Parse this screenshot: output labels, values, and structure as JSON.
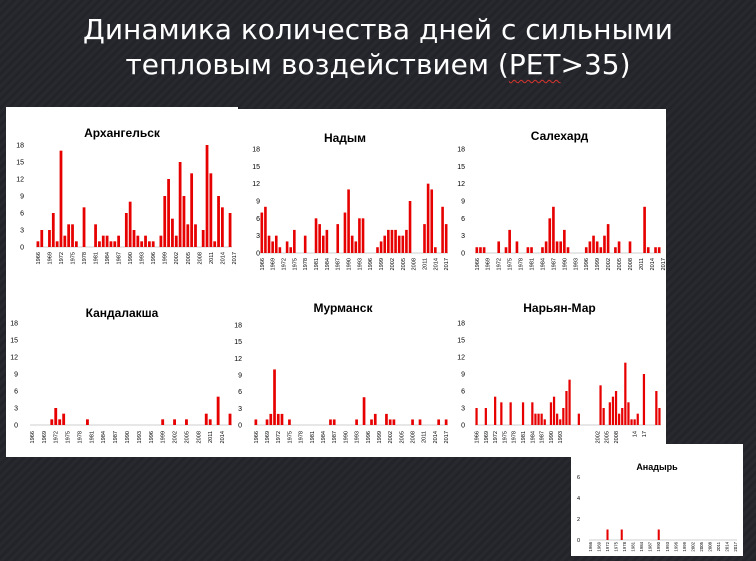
{
  "slide": {
    "title_line1": "Динамика количества дней с сильными",
    "title_line2_pre": "тепловым воздействием (",
    "title_line2_pet": "PET",
    "title_line2_post": ">35)"
  },
  "colors": {
    "bar": "#e60000",
    "background": "#23252b",
    "panel": "#ffffff"
  },
  "chart_data": [
    {
      "type": "bar",
      "title": "Архангельск",
      "ylim": [
        0,
        18
      ],
      "yticks": [
        0,
        3,
        6,
        9,
        12,
        15,
        18
      ],
      "x_start": 1966,
      "xtick_labels": [
        "1966",
        "1969",
        "1972",
        "1975",
        "1978",
        "1981",
        "1984",
        "1987",
        "1990",
        "1993",
        "1996",
        "1999",
        "2002",
        "2005",
        "2008",
        "2011",
        "2014",
        "2017"
      ],
      "values": [
        1,
        3,
        0,
        3,
        6,
        1,
        17,
        2,
        4,
        4,
        1,
        0,
        7,
        0,
        0,
        4,
        1,
        2,
        2,
        1,
        1,
        2,
        0,
        6,
        8,
        3,
        2,
        1,
        2,
        1,
        1,
        0,
        2,
        9,
        12,
        5,
        2,
        15,
        9,
        4,
        13,
        4,
        0,
        3,
        18,
        13,
        1,
        9,
        7,
        0,
        6
      ],
      "grid": false,
      "legend": "none"
    },
    {
      "type": "bar",
      "title": "Надым",
      "ylim": [
        0,
        18
      ],
      "yticks": [
        0,
        3,
        6,
        9,
        12,
        15,
        18
      ],
      "x_start": 1966,
      "xtick_labels": [
        "1966",
        "1969",
        "1972",
        "1975",
        "1978",
        "1981",
        "1984",
        "1987",
        "1990",
        "1993",
        "1996",
        "1999",
        "2002",
        "2005",
        "2008",
        "2011",
        "2014",
        "2017"
      ],
      "values": [
        7,
        8,
        3,
        2,
        3,
        1,
        0,
        2,
        1,
        4,
        0,
        0,
        3,
        0,
        0,
        6,
        5,
        3,
        4,
        0,
        0,
        5,
        0,
        7,
        11,
        3,
        2,
        6,
        6,
        0,
        0,
        0,
        1,
        2,
        3,
        4,
        4,
        4,
        3,
        3,
        4,
        9,
        0,
        0,
        0,
        5,
        12,
        11,
        1,
        0,
        8,
        5
      ],
      "grid": false,
      "legend": "none"
    },
    {
      "type": "bar",
      "title": "Салехард",
      "ylim": [
        0,
        18
      ],
      "yticks": [
        0,
        3,
        6,
        9,
        12,
        15,
        18
      ],
      "x_start": 1966,
      "xtick_labels": [
        "1966",
        "1969",
        "1972",
        "1975",
        "1978",
        "1981",
        "1984",
        "1987",
        "1990",
        "1993",
        "1996",
        "1999",
        "2002",
        "2005",
        "2008",
        "2011",
        "2014",
        "2017"
      ],
      "values": [
        1,
        1,
        1,
        0,
        0,
        0,
        2,
        0,
        1,
        4,
        0,
        2,
        0,
        0,
        1,
        1,
        0,
        0,
        1,
        2,
        6,
        8,
        2,
        2,
        4,
        1,
        0,
        0,
        0,
        0,
        1,
        2,
        3,
        2,
        1,
        3,
        5,
        0,
        1,
        2,
        0,
        0,
        2,
        0,
        0,
        0,
        8,
        1,
        0,
        1,
        1
      ],
      "grid": false,
      "legend": "none"
    },
    {
      "type": "bar",
      "title": "Кандалакша",
      "ylim": [
        0,
        18
      ],
      "yticks": [
        0,
        3,
        6,
        9,
        12,
        15,
        18
      ],
      "x_start": 1966,
      "xtick_labels": [
        "1966",
        "1969",
        "1972",
        "1975",
        "1978",
        "1981",
        "1984",
        "1987",
        "1990",
        "1993",
        "1996",
        "1999",
        "2002",
        "2005",
        "2008",
        "2011",
        "2014",
        "2017"
      ],
      "values": [
        0,
        0,
        0,
        0,
        0,
        1,
        3,
        1,
        2,
        0,
        0,
        0,
        0,
        0,
        1,
        0,
        0,
        0,
        0,
        0,
        0,
        0,
        0,
        0,
        0,
        0,
        0,
        0,
        0,
        0,
        0,
        0,
        0,
        1,
        0,
        0,
        1,
        0,
        0,
        1,
        0,
        0,
        0,
        0,
        2,
        1,
        0,
        5,
        0,
        0,
        2
      ],
      "grid": false,
      "legend": "none"
    },
    {
      "type": "bar",
      "title": "Мурманск",
      "ylim": [
        0,
        18
      ],
      "yticks": [
        0,
        3,
        6,
        9,
        12,
        15,
        18
      ],
      "x_start": 1966,
      "xtick_labels": [
        "1966",
        "1969",
        "1972",
        "1975",
        "1978",
        "1981",
        "1984",
        "1987",
        "1990",
        "1993",
        "1996",
        "1999",
        "2002",
        "2005",
        "2008",
        "2011",
        "2014",
        "2017"
      ],
      "values": [
        1,
        0,
        0,
        1,
        2,
        10,
        2,
        2,
        0,
        1,
        0,
        0,
        0,
        0,
        0,
        0,
        0,
        0,
        0,
        0,
        1,
        1,
        0,
        0,
        0,
        0,
        0,
        1,
        0,
        5,
        0,
        1,
        2,
        0,
        0,
        2,
        1,
        1,
        0,
        0,
        0,
        0,
        1,
        0,
        1,
        0,
        0,
        0,
        0,
        1,
        0,
        1
      ],
      "grid": false,
      "legend": "none"
    },
    {
      "type": "bar",
      "title": "Нарьян-Мар",
      "ylim": [
        0,
        18
      ],
      "yticks": [
        0,
        3,
        6,
        9,
        12,
        15,
        18
      ],
      "x_start": 1966,
      "xtick_labels": [
        "1966",
        "1969",
        "1972",
        "1975",
        "1978",
        "1981",
        "1984",
        "1987",
        "1990",
        "1993",
        "",
        "",
        "",
        "2002",
        "2005",
        "2008",
        "",
        "14",
        "17"
      ],
      "values": [
        3,
        0,
        0,
        3,
        0,
        0,
        5,
        0,
        4,
        0,
        0,
        4,
        0,
        0,
        0,
        4,
        0,
        0,
        4,
        2,
        2,
        2,
        1,
        0,
        4,
        5,
        2,
        1,
        3,
        6,
        8,
        0,
        0,
        2,
        0,
        0,
        0,
        0,
        0,
        0,
        7,
        3,
        0,
        4,
        5,
        6,
        2,
        3,
        11,
        4,
        1,
        1,
        2,
        0,
        9,
        0,
        0,
        0,
        6,
        3
      ],
      "grid": false,
      "legend": "none"
    },
    {
      "type": "bar",
      "title": "Анадырь",
      "ylim": [
        0,
        6
      ],
      "yticks": [
        0,
        2,
        4,
        6
      ],
      "x_start": 1966,
      "xtick_labels": [
        "1966",
        "1969",
        "1972",
        "1975",
        "1978",
        "1981",
        "1984",
        "1987",
        "1990",
        "1993",
        "1996",
        "1999",
        "2002",
        "2005",
        "2008",
        "2011",
        "2014",
        "2017"
      ],
      "values": [
        0,
        0,
        0,
        0,
        0,
        0,
        1,
        0,
        0,
        0,
        0,
        1,
        0,
        0,
        0,
        0,
        0,
        0,
        0,
        0,
        0,
        0,
        0,
        0,
        1,
        0,
        0,
        0,
        0,
        0,
        0,
        0,
        0,
        0,
        0,
        0,
        0,
        0,
        0,
        0,
        0,
        0,
        0,
        0,
        0,
        0,
        0,
        0,
        0,
        0,
        0,
        0
      ],
      "grid": false,
      "legend": "none"
    }
  ]
}
